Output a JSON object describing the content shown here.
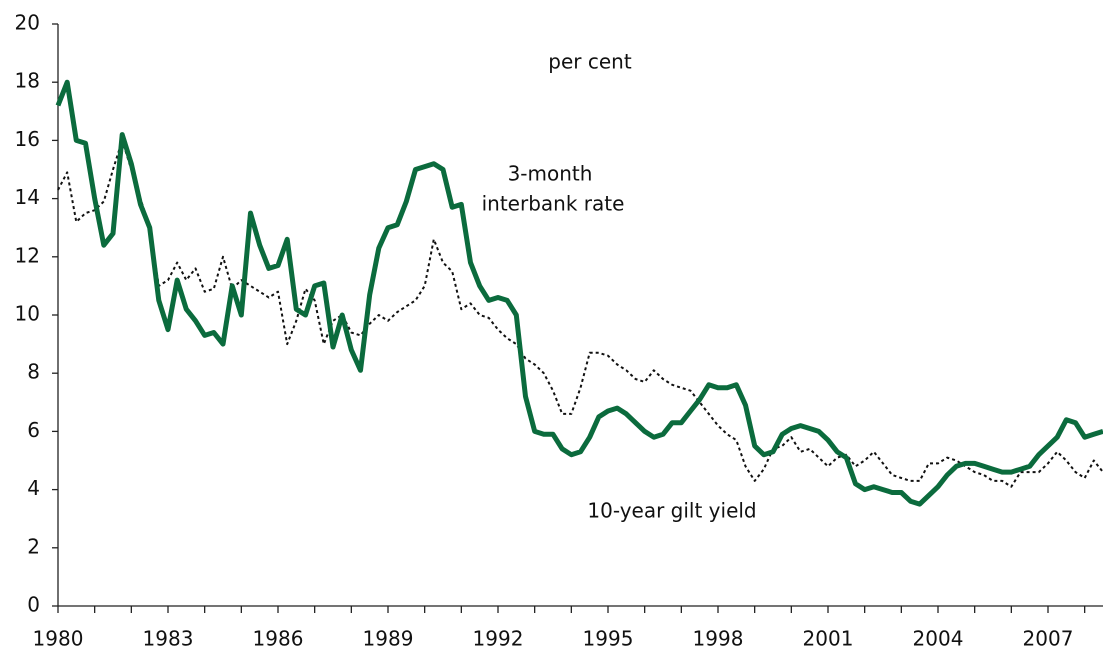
{
  "chart_data": {
    "type": "line",
    "annotations": [
      "per cent",
      "3-month",
      "interbank rate",
      "10-year gilt yield"
    ],
    "x": [
      1980,
      1980.25,
      1980.5,
      1980.75,
      1981,
      1981.25,
      1981.5,
      1981.75,
      1982,
      1982.25,
      1982.5,
      1982.75,
      1983,
      1983.25,
      1983.5,
      1983.75,
      1984,
      1984.25,
      1984.5,
      1984.75,
      1985,
      1985.25,
      1985.5,
      1985.75,
      1986,
      1986.25,
      1986.5,
      1986.75,
      1987,
      1987.25,
      1987.5,
      1987.75,
      1988,
      1988.25,
      1988.5,
      1988.75,
      1989,
      1989.25,
      1989.5,
      1989.75,
      1990,
      1990.25,
      1990.5,
      1990.75,
      1991,
      1991.25,
      1991.5,
      1991.75,
      1992,
      1992.25,
      1992.5,
      1992.75,
      1993,
      1993.25,
      1993.5,
      1993.75,
      1994,
      1994.25,
      1994.5,
      1994.75,
      1995,
      1995.25,
      1995.5,
      1995.75,
      1996,
      1996.25,
      1996.5,
      1996.75,
      1997,
      1997.25,
      1997.5,
      1997.75,
      1998,
      1998.25,
      1998.5,
      1998.75,
      1999,
      1999.25,
      1999.5,
      1999.75,
      2000,
      2000.25,
      2000.5,
      2000.75,
      2001,
      2001.25,
      2001.5,
      2001.75,
      2002,
      2002.25,
      2002.5,
      2002.75,
      2003,
      2003.25,
      2003.5,
      2003.75,
      2004,
      2004.25,
      2004.5,
      2004.75,
      2005,
      2005.25,
      2005.5,
      2005.75,
      2006,
      2006.25,
      2006.5,
      2006.75,
      2007,
      2007.25,
      2007.5,
      2007.75,
      2008,
      2008.25,
      2008.5
    ],
    "series": [
      {
        "color": "#0b6b3d",
        "width": 5,
        "dash": false,
        "values": [
          17.2,
          18.0,
          16.0,
          15.9,
          14.0,
          12.4,
          12.8,
          16.2,
          15.2,
          13.8,
          13.0,
          10.5,
          9.5,
          11.2,
          10.2,
          9.8,
          9.3,
          9.4,
          9.0,
          11.0,
          10.0,
          13.5,
          12.4,
          11.6,
          11.7,
          12.6,
          10.2,
          10.0,
          11.0,
          11.1,
          8.9,
          10.0,
          8.8,
          8.1,
          10.7,
          12.3,
          13.0,
          13.1,
          13.9,
          15.0,
          15.1,
          15.2,
          15.0,
          13.7,
          13.8,
          11.8,
          11.0,
          10.5,
          10.6,
          10.5,
          10.0,
          7.2,
          6.0,
          5.9,
          5.9,
          5.4,
          5.2,
          5.3,
          5.8,
          6.5,
          6.7,
          6.8,
          6.6,
          6.3,
          6.0,
          5.8,
          5.9,
          6.3,
          6.3,
          6.7,
          7.1,
          7.6,
          7.5,
          7.5,
          7.6,
          6.9,
          5.5,
          5.2,
          5.3,
          5.9,
          6.1,
          6.2,
          6.1,
          6.0,
          5.7,
          5.3,
          5.1,
          4.2,
          4.0,
          4.1,
          4.0,
          3.9,
          3.9,
          3.6,
          3.5,
          3.8,
          4.1,
          4.5,
          4.8,
          4.9,
          4.9,
          4.8,
          4.7,
          4.6,
          4.6,
          4.7,
          4.8,
          5.2,
          5.5,
          5.8,
          6.4,
          6.3,
          5.8,
          5.9,
          6.0
        ]
      },
      {
        "color": "#111111",
        "width": 2,
        "dash": true,
        "values": [
          14.3,
          14.9,
          13.2,
          13.5,
          13.6,
          13.9,
          15.0,
          16.0,
          15.0,
          14.0,
          13.0,
          11.0,
          11.2,
          11.8,
          11.2,
          11.6,
          10.8,
          10.9,
          12.0,
          10.9,
          11.2,
          11.0,
          10.8,
          10.6,
          10.8,
          9.0,
          9.8,
          10.9,
          10.5,
          9.0,
          9.8,
          10.0,
          9.4,
          9.3,
          9.7,
          10.0,
          9.8,
          10.1,
          10.3,
          10.5,
          11.0,
          12.6,
          11.8,
          11.5,
          10.2,
          10.4,
          10.0,
          9.9,
          9.5,
          9.2,
          9.0,
          8.5,
          8.3,
          8.0,
          7.4,
          6.6,
          6.6,
          7.5,
          8.7,
          8.7,
          8.6,
          8.3,
          8.1,
          7.8,
          7.7,
          8.1,
          7.8,
          7.6,
          7.5,
          7.4,
          7.0,
          6.6,
          6.2,
          5.9,
          5.7,
          4.8,
          4.3,
          4.7,
          5.4,
          5.5,
          5.8,
          5.3,
          5.4,
          5.1,
          4.8,
          5.1,
          5.2,
          4.8,
          5.0,
          5.3,
          4.9,
          4.5,
          4.4,
          4.3,
          4.3,
          4.9,
          4.9,
          5.1,
          5.0,
          4.8,
          4.6,
          4.5,
          4.3,
          4.3,
          4.1,
          4.6,
          4.6,
          4.6,
          4.9,
          5.3,
          5.0,
          4.6,
          4.4,
          5.0,
          4.6
        ]
      }
    ],
    "xlim": [
      1980,
      2008.5
    ],
    "xticks": [
      1980,
      1983,
      1986,
      1989,
      1992,
      1995,
      1998,
      2001,
      2004,
      2007
    ],
    "xminorticks": [
      1980,
      1981,
      1982,
      1983,
      1984,
      1985,
      1986,
      1987,
      1988,
      1989,
      1990,
      1991,
      1992,
      1993,
      1994,
      1995,
      1996,
      1997,
      1998,
      1999,
      2000,
      2001,
      2002,
      2003,
      2004,
      2005,
      2006,
      2007,
      2008
    ],
    "ylim": [
      0,
      20
    ],
    "yticks": [
      0,
      2,
      4,
      6,
      8,
      10,
      12,
      14,
      16,
      18,
      20
    ]
  }
}
